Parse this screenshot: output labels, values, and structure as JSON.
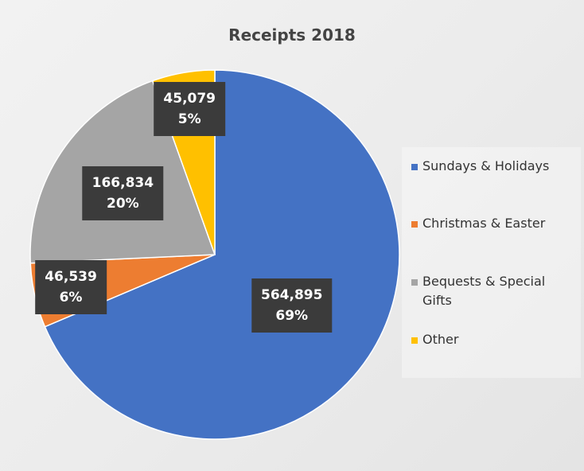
{
  "chart_data": {
    "type": "pie",
    "title": "Receipts 2018",
    "categories": [
      "Sundays & Holidays",
      "Christmas & Easter",
      "Bequests & Special Gifts",
      "Other"
    ],
    "values": [
      564895,
      46539,
      166834,
      45079
    ],
    "value_labels": [
      "564,895",
      "46,539",
      "166,834",
      "45,079"
    ],
    "percent_labels": [
      "69%",
      "6%",
      "20%",
      "5%"
    ],
    "colors": [
      "#4472c4",
      "#ed7d31",
      "#a5a5a5",
      "#ffc000"
    ],
    "legend": "right"
  }
}
